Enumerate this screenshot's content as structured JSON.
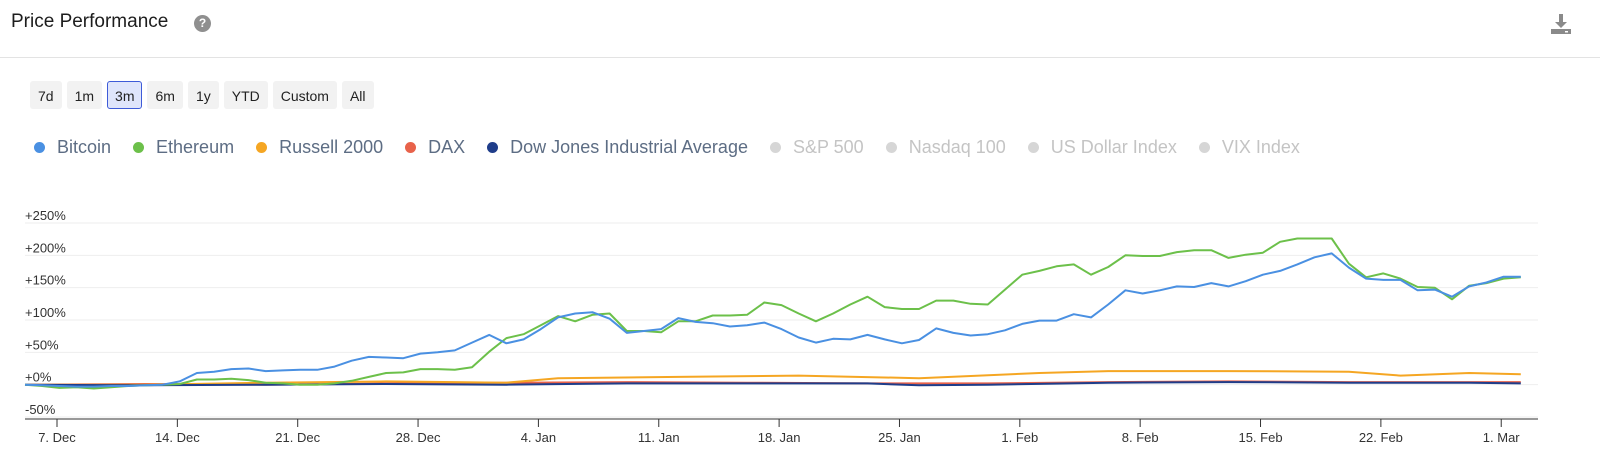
{
  "header": {
    "title": "Price Performance",
    "help_glyph": "?"
  },
  "ranges": {
    "items": [
      "7d",
      "1m",
      "3m",
      "6m",
      "1y",
      "YTD",
      "Custom",
      "All"
    ],
    "active": "3m"
  },
  "legend": [
    {
      "label": "Bitcoin",
      "color": "#4a90e2",
      "active": true
    },
    {
      "label": "Ethereum",
      "color": "#6cc04a",
      "active": true
    },
    {
      "label": "Russell 2000",
      "color": "#f5a623",
      "active": true
    },
    {
      "label": "DAX",
      "color": "#e8624a",
      "active": true
    },
    {
      "label": "Dow Jones Industrial Average",
      "color": "#1f3d8a",
      "active": true
    },
    {
      "label": "S&P 500",
      "color": "#d6d6d6",
      "active": false
    },
    {
      "label": "Nasdaq 100",
      "color": "#d6d6d6",
      "active": false
    },
    {
      "label": "US Dollar Index",
      "color": "#d6d6d6",
      "active": false
    },
    {
      "label": "VIX Index",
      "color": "#d6d6d6",
      "active": false
    }
  ],
  "colors": {
    "inactive_text": "#c4c4c4",
    "active_text": "#5d6d84",
    "grid": "#eeeeee",
    "axis": "#333333"
  },
  "chart_data": {
    "type": "line",
    "x_ticks": [
      "7. Dec",
      "14. Dec",
      "21. Dec",
      "28. Dec",
      "4. Jan",
      "11. Jan",
      "18. Jan",
      "25. Jan",
      "1. Feb",
      "8. Feb",
      "15. Feb",
      "22. Feb",
      "1. Mar"
    ],
    "y_ticks": [
      {
        "value": 250,
        "label": "+250%"
      },
      {
        "value": 200,
        "label": "+200%"
      },
      {
        "value": 150,
        "label": "+150%"
      },
      {
        "value": 100,
        "label": "+100%"
      },
      {
        "value": 50,
        "label": "+50%"
      },
      {
        "value": 0,
        "label": "+0%"
      },
      {
        "value": -50,
        "label": "-50%"
      }
    ],
    "ylim": [
      -50,
      250
    ],
    "xlim": [
      "2020-12-07",
      "2021-03-05"
    ],
    "grid": true,
    "legend_position": "top-left",
    "series": [
      {
        "name": "Bitcoin",
        "color": "#4a90e2",
        "points": [
          [
            "2020-12-07",
            0
          ],
          [
            "2020-12-08",
            -1
          ],
          [
            "2020-12-09",
            -2
          ],
          [
            "2020-12-10",
            -3
          ],
          [
            "2020-12-11",
            -3
          ],
          [
            "2020-12-12",
            -2
          ],
          [
            "2020-12-13",
            -2
          ],
          [
            "2020-12-14",
            -1
          ],
          [
            "2020-12-15",
            0
          ],
          [
            "2020-12-16",
            5
          ],
          [
            "2020-12-17",
            18
          ],
          [
            "2020-12-18",
            20
          ],
          [
            "2020-12-19",
            24
          ],
          [
            "2020-12-20",
            25
          ],
          [
            "2020-12-21",
            21
          ],
          [
            "2020-12-22",
            22
          ],
          [
            "2020-12-23",
            23
          ],
          [
            "2020-12-24",
            23
          ],
          [
            "2020-12-25",
            28
          ],
          [
            "2020-12-26",
            37
          ],
          [
            "2020-12-27",
            43
          ],
          [
            "2020-12-28",
            42
          ],
          [
            "2020-12-29",
            41
          ],
          [
            "2020-12-30",
            48
          ],
          [
            "2020-12-31",
            50
          ],
          [
            "2021-01-01",
            53
          ],
          [
            "2021-01-02",
            65
          ],
          [
            "2021-01-03",
            77
          ],
          [
            "2021-01-04",
            64
          ],
          [
            "2021-01-05",
            70
          ],
          [
            "2021-01-06",
            86
          ],
          [
            "2021-01-07",
            104
          ],
          [
            "2021-01-08",
            110
          ],
          [
            "2021-01-09",
            112
          ],
          [
            "2021-01-10",
            102
          ],
          [
            "2021-01-11",
            80
          ],
          [
            "2021-01-12",
            83
          ],
          [
            "2021-01-13",
            86
          ],
          [
            "2021-01-14",
            103
          ],
          [
            "2021-01-15",
            97
          ],
          [
            "2021-01-16",
            95
          ],
          [
            "2021-01-17",
            90
          ],
          [
            "2021-01-18",
            92
          ],
          [
            "2021-01-19",
            96
          ],
          [
            "2021-01-20",
            86
          ],
          [
            "2021-01-21",
            73
          ],
          [
            "2021-01-22",
            65
          ],
          [
            "2021-01-23",
            71
          ],
          [
            "2021-01-24",
            70
          ],
          [
            "2021-01-25",
            77
          ],
          [
            "2021-01-26",
            70
          ],
          [
            "2021-01-27",
            64
          ],
          [
            "2021-01-28",
            69
          ],
          [
            "2021-01-29",
            87
          ],
          [
            "2021-01-30",
            80
          ],
          [
            "2021-01-31",
            76
          ],
          [
            "2021-02-01",
            78
          ],
          [
            "2021-02-02",
            84
          ],
          [
            "2021-02-03",
            94
          ],
          [
            "2021-02-04",
            99
          ],
          [
            "2021-02-05",
            99
          ],
          [
            "2021-02-06",
            109
          ],
          [
            "2021-02-07",
            104
          ],
          [
            "2021-02-08",
            124
          ],
          [
            "2021-02-09",
            146
          ],
          [
            "2021-02-10",
            141
          ],
          [
            "2021-02-11",
            146
          ],
          [
            "2021-02-12",
            152
          ],
          [
            "2021-02-13",
            151
          ],
          [
            "2021-02-14",
            157
          ],
          [
            "2021-02-15",
            152
          ],
          [
            "2021-02-16",
            160
          ],
          [
            "2021-02-17",
            170
          ],
          [
            "2021-02-18",
            176
          ],
          [
            "2021-02-19",
            186
          ],
          [
            "2021-02-20",
            197
          ],
          [
            "2021-02-21",
            203
          ],
          [
            "2021-02-22",
            181
          ],
          [
            "2021-02-23",
            164
          ],
          [
            "2021-02-24",
            162
          ],
          [
            "2021-02-25",
            162
          ],
          [
            "2021-02-26",
            146
          ],
          [
            "2021-02-27",
            147
          ],
          [
            "2021-02-28",
            136
          ],
          [
            "2021-03-01",
            152
          ],
          [
            "2021-03-02",
            158
          ],
          [
            "2021-03-03",
            167
          ],
          [
            "2021-03-04",
            167
          ]
        ]
      },
      {
        "name": "Ethereum",
        "color": "#6cc04a",
        "points": [
          [
            "2020-12-07",
            0
          ],
          [
            "2020-12-08",
            -2
          ],
          [
            "2020-12-09",
            -5
          ],
          [
            "2020-12-10",
            -4
          ],
          [
            "2020-12-11",
            -6
          ],
          [
            "2020-12-12",
            -4
          ],
          [
            "2020-12-13",
            -2
          ],
          [
            "2020-12-14",
            -1
          ],
          [
            "2020-12-15",
            0
          ],
          [
            "2020-12-16",
            1
          ],
          [
            "2020-12-17",
            8
          ],
          [
            "2020-12-18",
            8
          ],
          [
            "2020-12-19",
            9
          ],
          [
            "2020-12-20",
            7
          ],
          [
            "2020-12-21",
            3
          ],
          [
            "2020-12-22",
            2
          ],
          [
            "2020-12-23",
            0
          ],
          [
            "2020-12-24",
            0
          ],
          [
            "2020-12-25",
            2
          ],
          [
            "2020-12-26",
            6
          ],
          [
            "2020-12-27",
            12
          ],
          [
            "2020-12-28",
            18
          ],
          [
            "2020-12-29",
            19
          ],
          [
            "2020-12-30",
            24
          ],
          [
            "2020-12-31",
            24
          ],
          [
            "2021-01-01",
            23
          ],
          [
            "2021-01-02",
            27
          ],
          [
            "2021-01-03",
            51
          ],
          [
            "2021-01-04",
            72
          ],
          [
            "2021-01-05",
            78
          ],
          [
            "2021-01-06",
            92
          ],
          [
            "2021-01-07",
            106
          ],
          [
            "2021-01-08",
            98
          ],
          [
            "2021-01-09",
            108
          ],
          [
            "2021-01-10",
            110
          ],
          [
            "2021-01-11",
            83
          ],
          [
            "2021-01-12",
            83
          ],
          [
            "2021-01-13",
            81
          ],
          [
            "2021-01-14",
            98
          ],
          [
            "2021-01-15",
            98
          ],
          [
            "2021-01-16",
            107
          ],
          [
            "2021-01-17",
            107
          ],
          [
            "2021-01-18",
            108
          ],
          [
            "2021-01-19",
            127
          ],
          [
            "2021-01-20",
            123
          ],
          [
            "2021-01-21",
            110
          ],
          [
            "2021-01-22",
            98
          ],
          [
            "2021-01-23",
            110
          ],
          [
            "2021-01-24",
            124
          ],
          [
            "2021-01-25",
            136
          ],
          [
            "2021-01-26",
            120
          ],
          [
            "2021-01-27",
            117
          ],
          [
            "2021-01-28",
            117
          ],
          [
            "2021-01-29",
            130
          ],
          [
            "2021-01-30",
            130
          ],
          [
            "2021-01-31",
            125
          ],
          [
            "2021-02-01",
            124
          ],
          [
            "2021-02-02",
            147
          ],
          [
            "2021-02-03",
            170
          ],
          [
            "2021-02-04",
            176
          ],
          [
            "2021-02-05",
            183
          ],
          [
            "2021-02-06",
            186
          ],
          [
            "2021-02-07",
            170
          ],
          [
            "2021-02-08",
            182
          ],
          [
            "2021-02-09",
            200
          ],
          [
            "2021-02-10",
            199
          ],
          [
            "2021-02-11",
            199
          ],
          [
            "2021-02-12",
            205
          ],
          [
            "2021-02-13",
            208
          ],
          [
            "2021-02-14",
            208
          ],
          [
            "2021-02-15",
            196
          ],
          [
            "2021-02-16",
            201
          ],
          [
            "2021-02-17",
            204
          ],
          [
            "2021-02-18",
            221
          ],
          [
            "2021-02-19",
            226
          ],
          [
            "2021-02-20",
            226
          ],
          [
            "2021-02-21",
            226
          ],
          [
            "2021-02-22",
            187
          ],
          [
            "2021-02-23",
            166
          ],
          [
            "2021-02-24",
            172
          ],
          [
            "2021-02-25",
            164
          ],
          [
            "2021-02-26",
            151
          ],
          [
            "2021-02-27",
            150
          ],
          [
            "2021-02-28",
            132
          ],
          [
            "2021-03-01",
            153
          ],
          [
            "2021-03-02",
            157
          ],
          [
            "2021-03-03",
            164
          ],
          [
            "2021-03-04",
            166
          ]
        ]
      },
      {
        "name": "Russell 2000",
        "color": "#f5a623",
        "points": [
          [
            "2020-12-07",
            0
          ],
          [
            "2020-12-14",
            0
          ],
          [
            "2020-12-21",
            3
          ],
          [
            "2020-12-28",
            5
          ],
          [
            "2021-01-01",
            4
          ],
          [
            "2021-01-04",
            3
          ],
          [
            "2021-01-07",
            10
          ],
          [
            "2021-01-14",
            12
          ],
          [
            "2021-01-21",
            14
          ],
          [
            "2021-01-28",
            10
          ],
          [
            "2021-02-04",
            18
          ],
          [
            "2021-02-08",
            21
          ],
          [
            "2021-02-15",
            21
          ],
          [
            "2021-02-22",
            20
          ],
          [
            "2021-02-25",
            14
          ],
          [
            "2021-03-01",
            18
          ],
          [
            "2021-03-04",
            16
          ]
        ]
      },
      {
        "name": "DAX",
        "color": "#e8624a",
        "points": [
          [
            "2020-12-07",
            0
          ],
          [
            "2020-12-14",
            1
          ],
          [
            "2020-12-21",
            0
          ],
          [
            "2020-12-28",
            2
          ],
          [
            "2021-01-04",
            3
          ],
          [
            "2021-01-11",
            4
          ],
          [
            "2021-01-18",
            3
          ],
          [
            "2021-01-25",
            2
          ],
          [
            "2021-02-01",
            2
          ],
          [
            "2021-02-08",
            4
          ],
          [
            "2021-02-15",
            5
          ],
          [
            "2021-02-22",
            4
          ],
          [
            "2021-03-01",
            4
          ],
          [
            "2021-03-04",
            4
          ]
        ]
      },
      {
        "name": "Dow Jones Industrial Average",
        "color": "#1f3d8a",
        "points": [
          [
            "2020-12-07",
            0
          ],
          [
            "2020-12-14",
            -1
          ],
          [
            "2020-12-21",
            0
          ],
          [
            "2020-12-28",
            1
          ],
          [
            "2021-01-04",
            0
          ],
          [
            "2021-01-11",
            2
          ],
          [
            "2021-01-18",
            2
          ],
          [
            "2021-01-25",
            2
          ],
          [
            "2021-01-28",
            -1
          ],
          [
            "2021-02-01",
            0
          ],
          [
            "2021-02-08",
            3
          ],
          [
            "2021-02-15",
            4
          ],
          [
            "2021-02-22",
            3
          ],
          [
            "2021-03-01",
            3
          ],
          [
            "2021-03-04",
            2
          ]
        ]
      }
    ]
  }
}
